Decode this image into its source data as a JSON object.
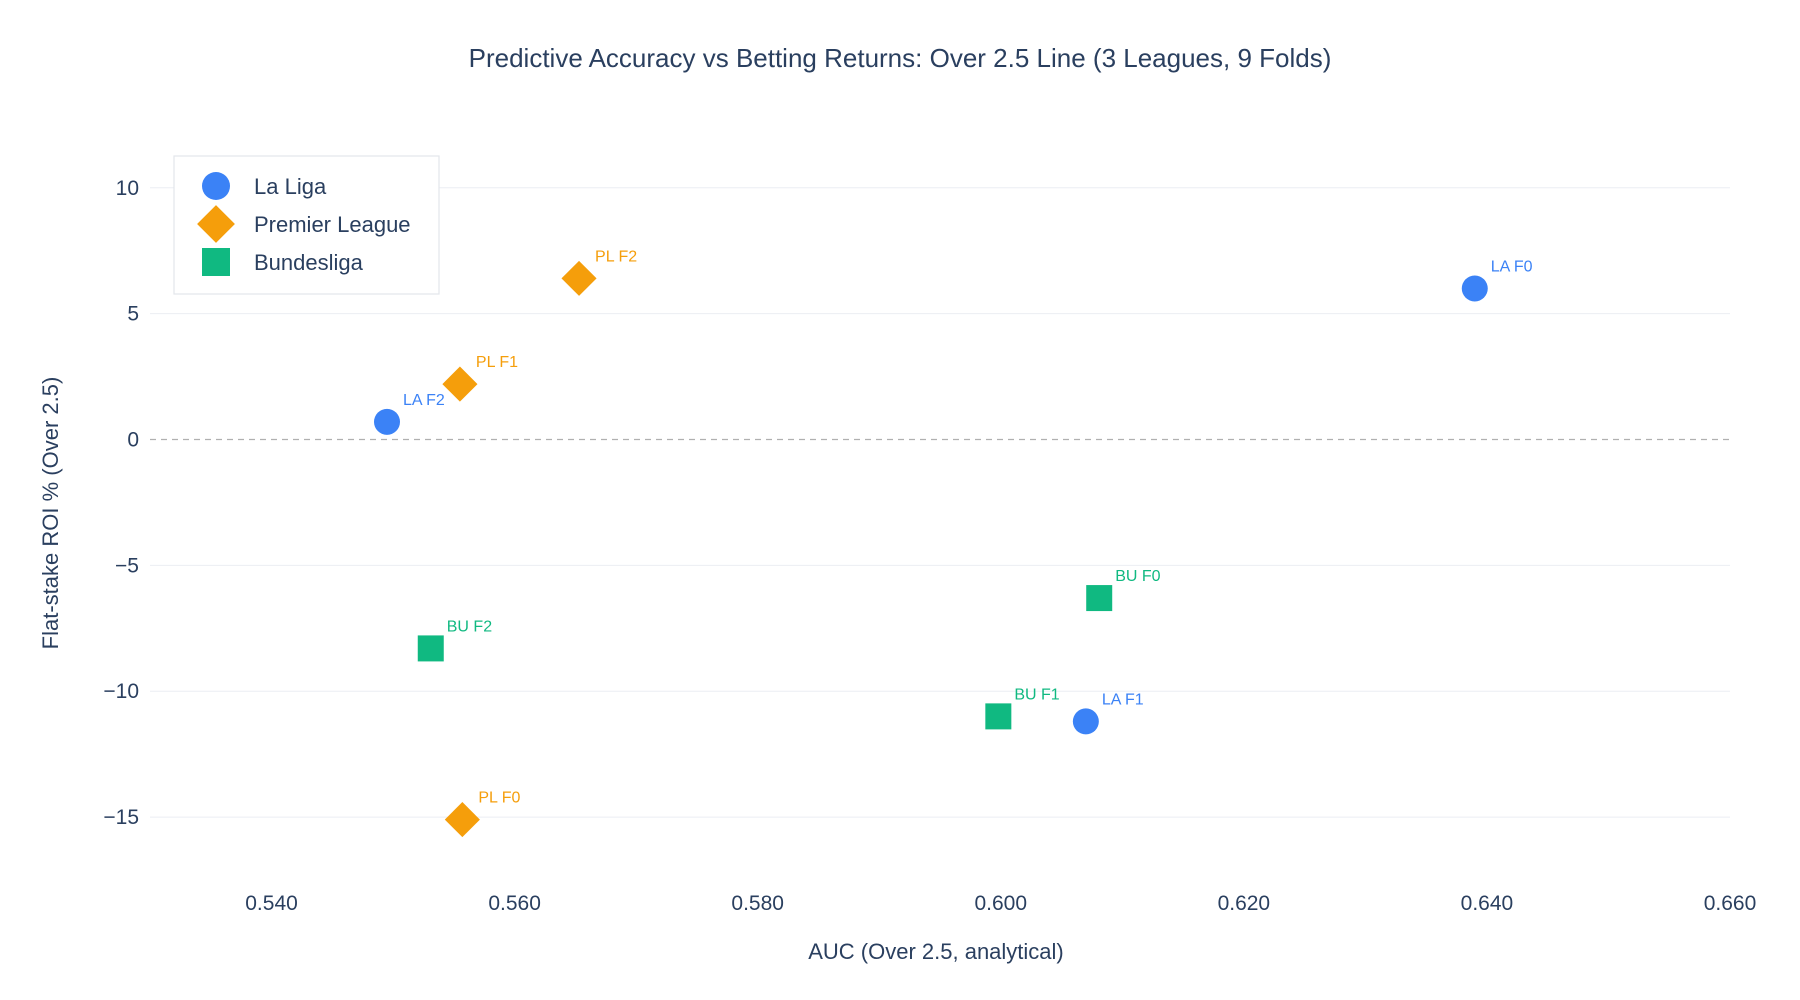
{
  "chart_data": {
    "type": "scatter",
    "title": "Predictive Accuracy vs Betting Returns: Over 2.5 Line (3 Leagues, 9 Folds)",
    "xlabel": "AUC (Over 2.5, analytical)",
    "ylabel": "Flat-stake ROI % (Over 2.5)",
    "xlim": [
      0.53,
      0.66
    ],
    "ylim": [
      -17.5,
      11.5
    ],
    "x_ticks": [
      0.54,
      0.56,
      0.58,
      0.6,
      0.62,
      0.64,
      0.66
    ],
    "x_tick_labels": [
      "0.540",
      "0.560",
      "0.580",
      "0.600",
      "0.620",
      "0.640",
      "0.660"
    ],
    "y_ticks": [
      10,
      5,
      0,
      -5,
      -10,
      -15
    ],
    "y_tick_labels": [
      "10",
      "5",
      "0",
      "−5",
      "−10",
      "−15"
    ],
    "grid": true,
    "zero_line": "dashed",
    "legend_position": "top-left",
    "series": [
      {
        "name": "La Liga",
        "marker": "circle",
        "color": "#3b82f6",
        "points": [
          {
            "x": 0.639,
            "y": 6.0,
            "label": "LA F0"
          },
          {
            "x": 0.607,
            "y": -11.2,
            "label": "LA F1"
          },
          {
            "x": 0.5495,
            "y": 0.7,
            "label": "LA F2"
          }
        ]
      },
      {
        "name": "Premier League",
        "marker": "diamond",
        "color": "#f59e0b",
        "points": [
          {
            "x": 0.5557,
            "y": -15.1,
            "label": "PL F0"
          },
          {
            "x": 0.5555,
            "y": 2.2,
            "label": "PL F1"
          },
          {
            "x": 0.5653,
            "y": 6.4,
            "label": "PL F2"
          }
        ]
      },
      {
        "name": "Bundesliga",
        "marker": "square",
        "color": "#10b981",
        "points": [
          {
            "x": 0.6081,
            "y": -6.3,
            "label": "BU F0"
          },
          {
            "x": 0.5998,
            "y": -11.0,
            "label": "BU F1"
          },
          {
            "x": 0.5531,
            "y": -8.3,
            "label": "BU F2"
          }
        ]
      }
    ]
  }
}
